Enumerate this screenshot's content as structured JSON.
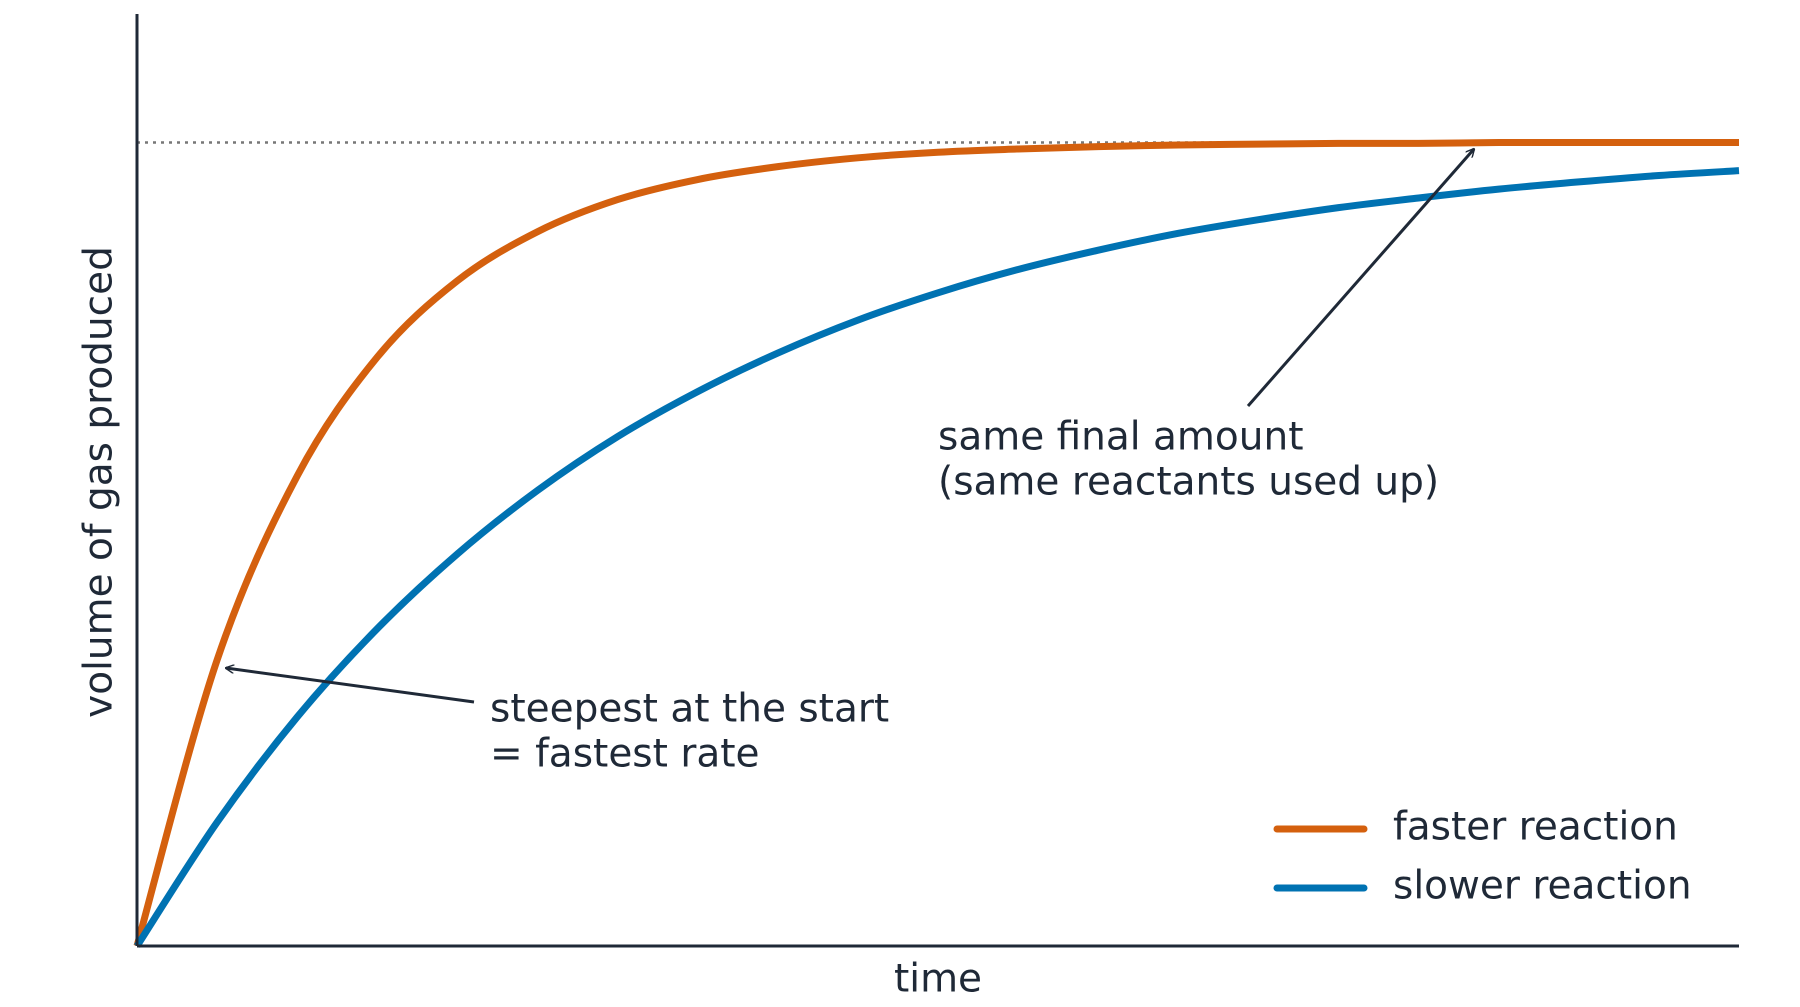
{
  "chart_data": {
    "type": "line",
    "x_label": "time",
    "y_label": "volume of gas produced",
    "x": [
      0,
      0.5,
      1,
      1.5,
      2,
      2.5,
      3,
      3.5,
      4,
      4.5,
      5,
      5.5,
      6,
      6.5,
      7,
      7.5,
      8,
      8.5,
      9,
      9.5,
      10
    ],
    "series": [
      {
        "name": "faster reaction",
        "color": "#d4600e",
        "values": [
          0,
          0.356,
          0.585,
          0.733,
          0.828,
          0.889,
          0.929,
          0.954,
          0.97,
          0.981,
          0.988,
          0.992,
          0.995,
          0.997,
          0.998,
          0.999,
          0.999,
          1.0,
          1.0,
          1.0,
          1.0
        ]
      },
      {
        "name": "slower reaction",
        "color": "#0072b2",
        "values": [
          0,
          0.154,
          0.285,
          0.395,
          0.488,
          0.567,
          0.634,
          0.69,
          0.738,
          0.779,
          0.813,
          0.842,
          0.866,
          0.887,
          0.904,
          0.919,
          0.931,
          0.942,
          0.951,
          0.959,
          0.965
        ]
      }
    ],
    "xlim": [
      0,
      10
    ],
    "ylim": [
      0,
      1.16
    ],
    "hline": 1,
    "legend": "lower right",
    "annotations": [
      {
        "lines": [
          "steepest at the start",
          "= fastest rate"
        ]
      },
      {
        "lines": [
          "same final amount",
          "(same reactants used up)"
        ]
      }
    ]
  }
}
